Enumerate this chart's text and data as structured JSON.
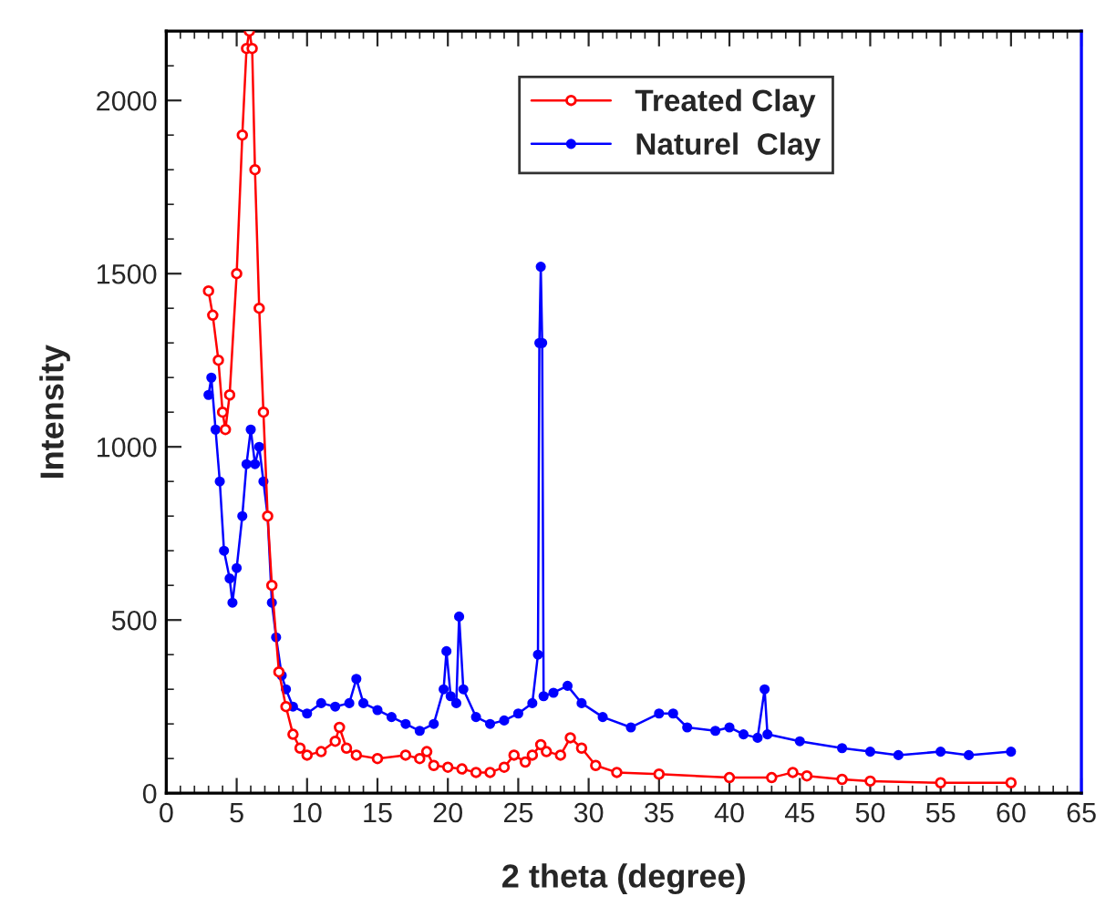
{
  "chart_data": {
    "type": "line",
    "xlabel": "2 theta (degree)",
    "ylabel": "Intensity",
    "xlim": [
      0,
      65
    ],
    "xticks": [
      0,
      5,
      10,
      15,
      20,
      25,
      30,
      35,
      40,
      45,
      50,
      55,
      60,
      65
    ],
    "ylim": [
      0,
      2200
    ],
    "yticks": [
      0,
      500,
      1000,
      1500,
      2000
    ],
    "grid": false,
    "legend": "top right",
    "marker": "circle",
    "line_style": "solid",
    "series": [
      {
        "name": "Treated Clay",
        "color": "#ff0000",
        "x": [
          3.0,
          3.3,
          3.7,
          4.0,
          4.2,
          4.5,
          5.0,
          5.4,
          5.7,
          5.9,
          6.1,
          6.3,
          6.6,
          6.9,
          7.2,
          7.5,
          8.0,
          8.5,
          9.0,
          9.5,
          10,
          11,
          12,
          12.3,
          12.8,
          13.5,
          15,
          17,
          18,
          18.5,
          19,
          20,
          21,
          22,
          23,
          24,
          24.7,
          25.5,
          26,
          26.6,
          27,
          28,
          28.7,
          29.5,
          30.5,
          32,
          35,
          40,
          43,
          44.5,
          45.5,
          48,
          50,
          55,
          60
        ],
        "values": [
          1450,
          1380,
          1250,
          1100,
          1050,
          1150,
          1500,
          1900,
          2150,
          2200,
          2150,
          1800,
          1400,
          1100,
          800,
          600,
          350,
          250,
          170,
          130,
          110,
          120,
          150,
          190,
          130,
          110,
          100,
          110,
          100,
          120,
          80,
          75,
          70,
          60,
          60,
          75,
          110,
          90,
          110,
          140,
          120,
          110,
          160,
          130,
          80,
          60,
          55,
          45,
          45,
          60,
          50,
          40,
          35,
          30,
          30
        ]
      },
      {
        "name": "Naturel  Clay",
        "color": "#0000ff",
        "x": [
          3.0,
          3.2,
          3.5,
          3.8,
          4.1,
          4.5,
          4.7,
          5.0,
          5.4,
          5.7,
          6.0,
          6.3,
          6.6,
          6.9,
          7.2,
          7.5,
          7.8,
          8.2,
          8.5,
          9,
          10,
          11,
          12,
          13,
          13.5,
          14,
          15,
          16,
          17,
          18,
          19,
          19.7,
          19.9,
          20.2,
          20.6,
          20.8,
          21.1,
          22,
          23,
          24,
          25,
          26,
          26.4,
          26.5,
          26.6,
          26.7,
          26.8,
          27.5,
          28.5,
          29.5,
          31,
          33,
          35,
          36,
          37,
          39,
          40,
          41,
          42,
          42.5,
          42.7,
          45,
          48,
          50,
          52,
          55,
          57,
          60
        ],
        "values": [
          1150,
          1200,
          1050,
          900,
          700,
          620,
          550,
          650,
          800,
          950,
          1050,
          950,
          1000,
          900,
          800,
          550,
          450,
          340,
          300,
          250,
          230,
          260,
          250,
          260,
          330,
          260,
          240,
          220,
          200,
          180,
          200,
          300,
          410,
          280,
          260,
          510,
          300,
          220,
          200,
          210,
          230,
          260,
          400,
          1300,
          1520,
          1300,
          280,
          290,
          310,
          260,
          220,
          190,
          230,
          230,
          190,
          180,
          190,
          170,
          160,
          300,
          170,
          150,
          130,
          120,
          110,
          120,
          110,
          120
        ]
      }
    ]
  }
}
